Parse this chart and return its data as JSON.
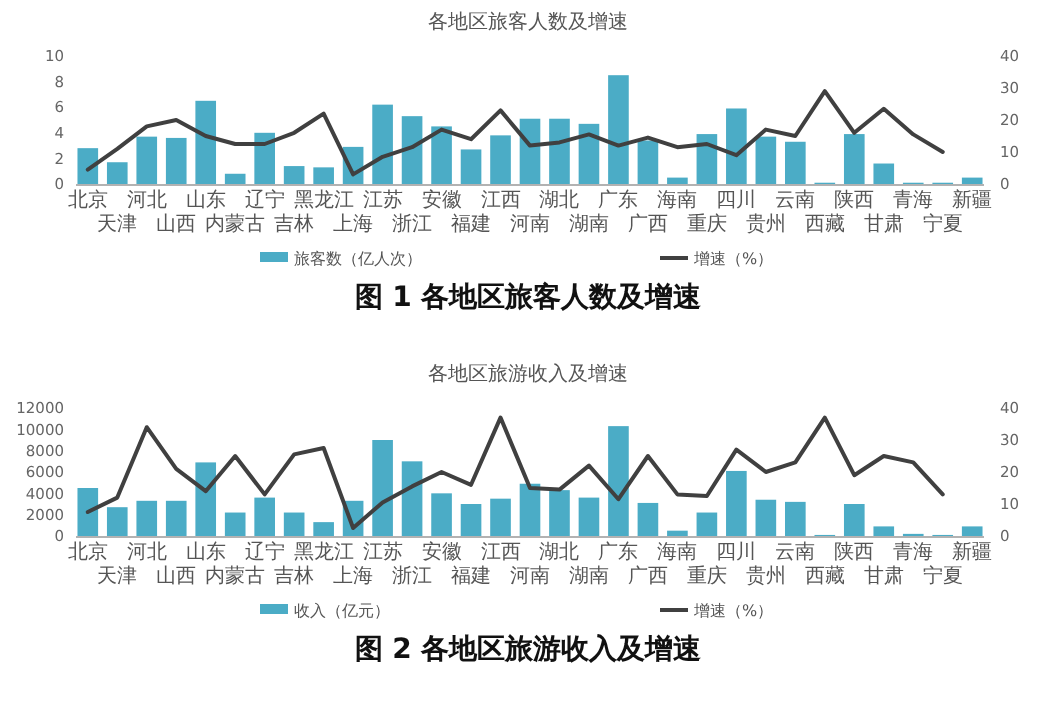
{
  "chart_data": [
    {
      "type": "bar",
      "title": "各地区旅客人数及增速",
      "categories": [
        "北京",
        "天津",
        "河北",
        "山西",
        "山东",
        "内蒙古",
        "辽宁",
        "吉林",
        "黑龙江",
        "上海",
        "江苏",
        "浙江",
        "安徽",
        "福建",
        "江西",
        "河南",
        "湖北",
        "湖南",
        "广东",
        "广西",
        "海南",
        "重庆",
        "四川",
        "贵州",
        "云南",
        "西藏",
        "陕西",
        "甘肃",
        "青海",
        "宁夏",
        "新疆"
      ],
      "series": [
        {
          "name": "旅客数（亿人次）",
          "color": "#4bacc6",
          "values": [
            2.8,
            1.7,
            3.7,
            3.6,
            6.5,
            0.8,
            4.0,
            1.4,
            1.3,
            2.9,
            6.2,
            5.3,
            4.5,
            2.7,
            3.8,
            5.1,
            5.1,
            4.7,
            8.5,
            3.4,
            0.5,
            3.9,
            5.9,
            3.7,
            3.3,
            0.1,
            3.9,
            1.6,
            0.1,
            0.1,
            0.5
          ]
        },
        {
          "name": "增速（%）",
          "type": "line",
          "axis": "y2",
          "color": "#404040",
          "values": [
            4.5,
            11,
            18,
            20,
            15,
            12.5,
            12.5,
            16,
            22,
            3,
            8.5,
            11.5,
            17,
            14,
            23,
            12,
            13,
            15.5,
            12,
            14.5,
            11.5,
            12.5,
            9,
            17,
            15,
            29,
            16,
            23.5,
            15.5,
            10,
            null
          ]
        }
      ],
      "ylim": [
        0,
        10
      ],
      "yticks": [
        0,
        2,
        4,
        6,
        8,
        10
      ],
      "y2lim": [
        0,
        40
      ],
      "y2ticks": [
        0,
        10,
        20,
        30,
        40
      ],
      "legend": "bottom",
      "annotations": [
        "图 1 各地区旅客人数及增速"
      ]
    },
    {
      "type": "bar",
      "title": "各地区旅游收入及增速",
      "categories": [
        "北京",
        "天津",
        "河北",
        "山西",
        "山东",
        "内蒙古",
        "辽宁",
        "吉林",
        "黑龙江",
        "上海",
        "江苏",
        "浙江",
        "安徽",
        "福建",
        "江西",
        "河南",
        "湖北",
        "湖南",
        "广东",
        "广西",
        "海南",
        "重庆",
        "四川",
        "贵州",
        "云南",
        "西藏",
        "陕西",
        "甘肃",
        "青海",
        "宁夏",
        "新疆"
      ],
      "series": [
        {
          "name": "收入（亿元）",
          "color": "#4bacc6",
          "values": [
            4500,
            2700,
            3300,
            3300,
            6900,
            2200,
            3600,
            2200,
            1300,
            3300,
            9000,
            7000,
            4000,
            3000,
            3500,
            4900,
            4300,
            3600,
            10300,
            3100,
            500,
            2200,
            6100,
            3400,
            3200,
            100,
            3000,
            900,
            200,
            100,
            900
          ]
        },
        {
          "name": "增速（%）",
          "type": "line",
          "axis": "y2",
          "color": "#404040",
          "values": [
            7.5,
            12,
            34,
            21,
            14,
            25,
            13,
            25.5,
            27.5,
            2.5,
            10.5,
            15.5,
            20,
            16,
            37,
            15,
            14.5,
            22,
            11.5,
            25,
            13,
            12.5,
            27,
            20,
            23,
            37,
            19,
            25,
            23,
            13,
            null
          ]
        }
      ],
      "ylim": [
        0,
        12000
      ],
      "yticks": [
        0,
        2000,
        4000,
        6000,
        8000,
        10000,
        12000
      ],
      "y2lim": [
        0,
        40
      ],
      "y2ticks": [
        0,
        10,
        20,
        30,
        40
      ],
      "legend": "bottom",
      "annotations": [
        "图 2 各地区旅游收入及增速"
      ]
    }
  ]
}
